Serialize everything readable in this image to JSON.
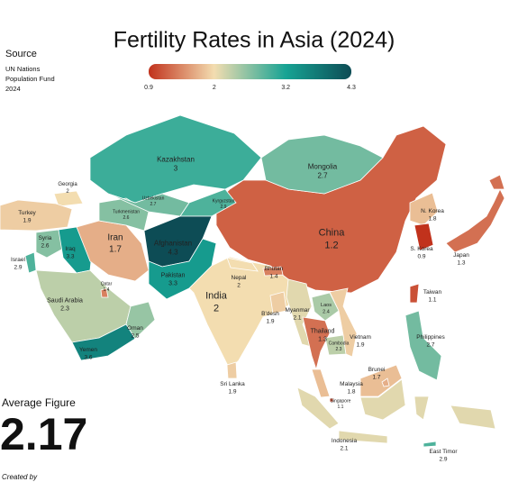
{
  "title": "Fertility Rates in Asia (2024)",
  "source": {
    "heading": "Source",
    "lines": [
      "UN Nations",
      "Population Fund",
      "2024"
    ]
  },
  "legend": {
    "ticks": [
      0.9,
      2,
      3.2,
      4.3
    ],
    "colors": [
      "#c1321c",
      "#f3ddb0",
      "#17a394",
      "#0d4c55"
    ]
  },
  "countries": [
    {
      "name": "China",
      "value": 1.2
    },
    {
      "name": "Kazakhstan",
      "value": 3
    },
    {
      "name": "Mongolia",
      "value": 2.7
    },
    {
      "name": "Georgia",
      "value": 2
    },
    {
      "name": "Turkey",
      "value": 1.9
    },
    {
      "name": "Syria",
      "value": 2.6
    },
    {
      "name": "Iraq",
      "value": 3.3
    },
    {
      "name": "Israel",
      "value": 2.9
    },
    {
      "name": "Iran",
      "value": 1.7
    },
    {
      "name": "Turkmenistan",
      "value": 2.6
    },
    {
      "name": "Uzbekistan",
      "value": 2.7
    },
    {
      "name": "Kyrgyzstan",
      "value": 2.9
    },
    {
      "name": "Afghanistan",
      "value": 4.3
    },
    {
      "name": "Pakistan",
      "value": 3.3
    },
    {
      "name": "India",
      "value": 2
    },
    {
      "name": "Nepal",
      "value": 2
    },
    {
      "name": "Bhutan",
      "value": 1.4
    },
    {
      "name": "B'desh",
      "value": 1.9
    },
    {
      "name": "Saudi Arabia",
      "value": 2.3
    },
    {
      "name": "Qatar",
      "value": 1.4
    },
    {
      "name": "Oman",
      "value": 2.5
    },
    {
      "name": "Yemen",
      "value": 3.6
    },
    {
      "name": "Myanmar",
      "value": 2.1
    },
    {
      "name": "Laos",
      "value": 2.4
    },
    {
      "name": "Thailand",
      "value": 1.3
    },
    {
      "name": "Cambodia",
      "value": 2.3
    },
    {
      "name": "Vietnam",
      "value": 1.9
    },
    {
      "name": "Sri Lanka",
      "value": 1.9
    },
    {
      "name": "Malaysia",
      "value": 1.8
    },
    {
      "name": "Singapore",
      "value": 1.1
    },
    {
      "name": "Brunei",
      "value": 1.7
    },
    {
      "name": "Indonesia",
      "value": 2.1
    },
    {
      "name": "East Timor",
      "value": 2.9
    },
    {
      "name": "Philippines",
      "value": 2.7
    },
    {
      "name": "Taiwan",
      "value": 1.1
    },
    {
      "name": "N. Korea",
      "value": 1.8
    },
    {
      "name": "S. Korea",
      "value": 0.9
    },
    {
      "name": "Japan",
      "value": 1.3
    }
  ],
  "average": {
    "label": "Average Figure",
    "value": "2.17"
  },
  "credit": "Created by"
}
